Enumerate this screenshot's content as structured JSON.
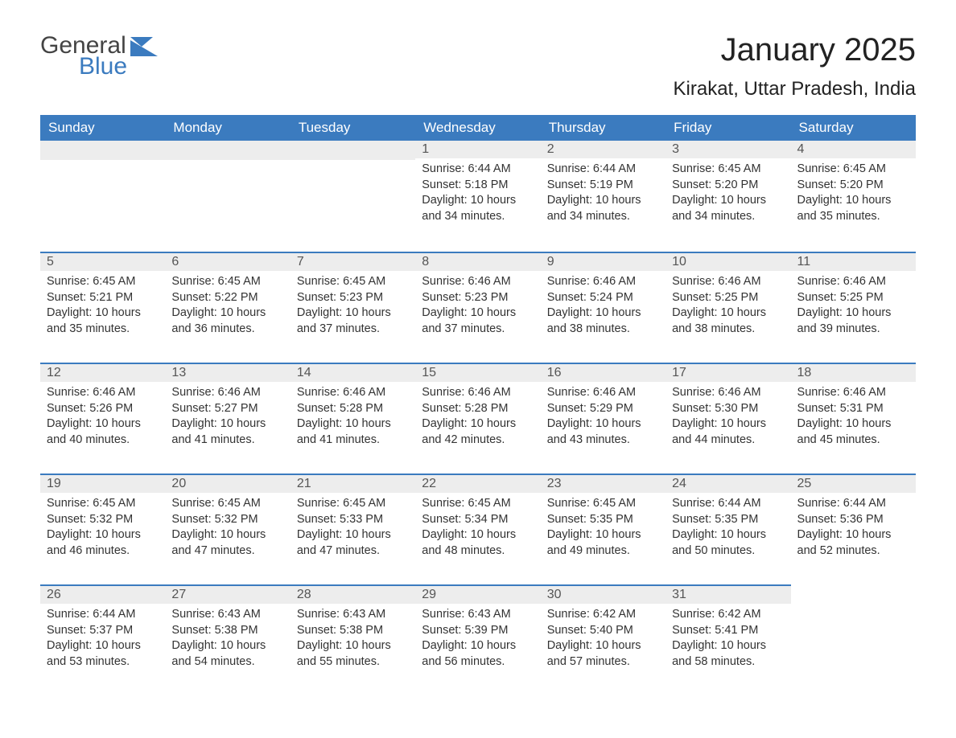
{
  "logo": {
    "text1": "General",
    "text2": "Blue"
  },
  "header": {
    "month_title": "January 2025",
    "location": "Kirakat, Uttar Pradesh, India"
  },
  "colors": {
    "header_bg": "#3b7bbf",
    "header_text": "#ffffff",
    "daynum_bg": "#ededed",
    "body_text": "#333333",
    "page_bg": "#ffffff"
  },
  "weekdays": [
    "Sunday",
    "Monday",
    "Tuesday",
    "Wednesday",
    "Thursday",
    "Friday",
    "Saturday"
  ],
  "calendar": {
    "first_weekday_index": 3,
    "days": [
      {
        "n": 1,
        "sunrise": "6:44 AM",
        "sunset": "5:18 PM",
        "daylight": "10 hours and 34 minutes."
      },
      {
        "n": 2,
        "sunrise": "6:44 AM",
        "sunset": "5:19 PM",
        "daylight": "10 hours and 34 minutes."
      },
      {
        "n": 3,
        "sunrise": "6:45 AM",
        "sunset": "5:20 PM",
        "daylight": "10 hours and 34 minutes."
      },
      {
        "n": 4,
        "sunrise": "6:45 AM",
        "sunset": "5:20 PM",
        "daylight": "10 hours and 35 minutes."
      },
      {
        "n": 5,
        "sunrise": "6:45 AM",
        "sunset": "5:21 PM",
        "daylight": "10 hours and 35 minutes."
      },
      {
        "n": 6,
        "sunrise": "6:45 AM",
        "sunset": "5:22 PM",
        "daylight": "10 hours and 36 minutes."
      },
      {
        "n": 7,
        "sunrise": "6:45 AM",
        "sunset": "5:23 PM",
        "daylight": "10 hours and 37 minutes."
      },
      {
        "n": 8,
        "sunrise": "6:46 AM",
        "sunset": "5:23 PM",
        "daylight": "10 hours and 37 minutes."
      },
      {
        "n": 9,
        "sunrise": "6:46 AM",
        "sunset": "5:24 PM",
        "daylight": "10 hours and 38 minutes."
      },
      {
        "n": 10,
        "sunrise": "6:46 AM",
        "sunset": "5:25 PM",
        "daylight": "10 hours and 38 minutes."
      },
      {
        "n": 11,
        "sunrise": "6:46 AM",
        "sunset": "5:25 PM",
        "daylight": "10 hours and 39 minutes."
      },
      {
        "n": 12,
        "sunrise": "6:46 AM",
        "sunset": "5:26 PM",
        "daylight": "10 hours and 40 minutes."
      },
      {
        "n": 13,
        "sunrise": "6:46 AM",
        "sunset": "5:27 PM",
        "daylight": "10 hours and 41 minutes."
      },
      {
        "n": 14,
        "sunrise": "6:46 AM",
        "sunset": "5:28 PM",
        "daylight": "10 hours and 41 minutes."
      },
      {
        "n": 15,
        "sunrise": "6:46 AM",
        "sunset": "5:28 PM",
        "daylight": "10 hours and 42 minutes."
      },
      {
        "n": 16,
        "sunrise": "6:46 AM",
        "sunset": "5:29 PM",
        "daylight": "10 hours and 43 minutes."
      },
      {
        "n": 17,
        "sunrise": "6:46 AM",
        "sunset": "5:30 PM",
        "daylight": "10 hours and 44 minutes."
      },
      {
        "n": 18,
        "sunrise": "6:46 AM",
        "sunset": "5:31 PM",
        "daylight": "10 hours and 45 minutes."
      },
      {
        "n": 19,
        "sunrise": "6:45 AM",
        "sunset": "5:32 PM",
        "daylight": "10 hours and 46 minutes."
      },
      {
        "n": 20,
        "sunrise": "6:45 AM",
        "sunset": "5:32 PM",
        "daylight": "10 hours and 47 minutes."
      },
      {
        "n": 21,
        "sunrise": "6:45 AM",
        "sunset": "5:33 PM",
        "daylight": "10 hours and 47 minutes."
      },
      {
        "n": 22,
        "sunrise": "6:45 AM",
        "sunset": "5:34 PM",
        "daylight": "10 hours and 48 minutes."
      },
      {
        "n": 23,
        "sunrise": "6:45 AM",
        "sunset": "5:35 PM",
        "daylight": "10 hours and 49 minutes."
      },
      {
        "n": 24,
        "sunrise": "6:44 AM",
        "sunset": "5:35 PM",
        "daylight": "10 hours and 50 minutes."
      },
      {
        "n": 25,
        "sunrise": "6:44 AM",
        "sunset": "5:36 PM",
        "daylight": "10 hours and 52 minutes."
      },
      {
        "n": 26,
        "sunrise": "6:44 AM",
        "sunset": "5:37 PM",
        "daylight": "10 hours and 53 minutes."
      },
      {
        "n": 27,
        "sunrise": "6:43 AM",
        "sunset": "5:38 PM",
        "daylight": "10 hours and 54 minutes."
      },
      {
        "n": 28,
        "sunrise": "6:43 AM",
        "sunset": "5:38 PM",
        "daylight": "10 hours and 55 minutes."
      },
      {
        "n": 29,
        "sunrise": "6:43 AM",
        "sunset": "5:39 PM",
        "daylight": "10 hours and 56 minutes."
      },
      {
        "n": 30,
        "sunrise": "6:42 AM",
        "sunset": "5:40 PM",
        "daylight": "10 hours and 57 minutes."
      },
      {
        "n": 31,
        "sunrise": "6:42 AM",
        "sunset": "5:41 PM",
        "daylight": "10 hours and 58 minutes."
      }
    ]
  },
  "labels": {
    "sunrise": "Sunrise:",
    "sunset": "Sunset:",
    "daylight": "Daylight:"
  }
}
